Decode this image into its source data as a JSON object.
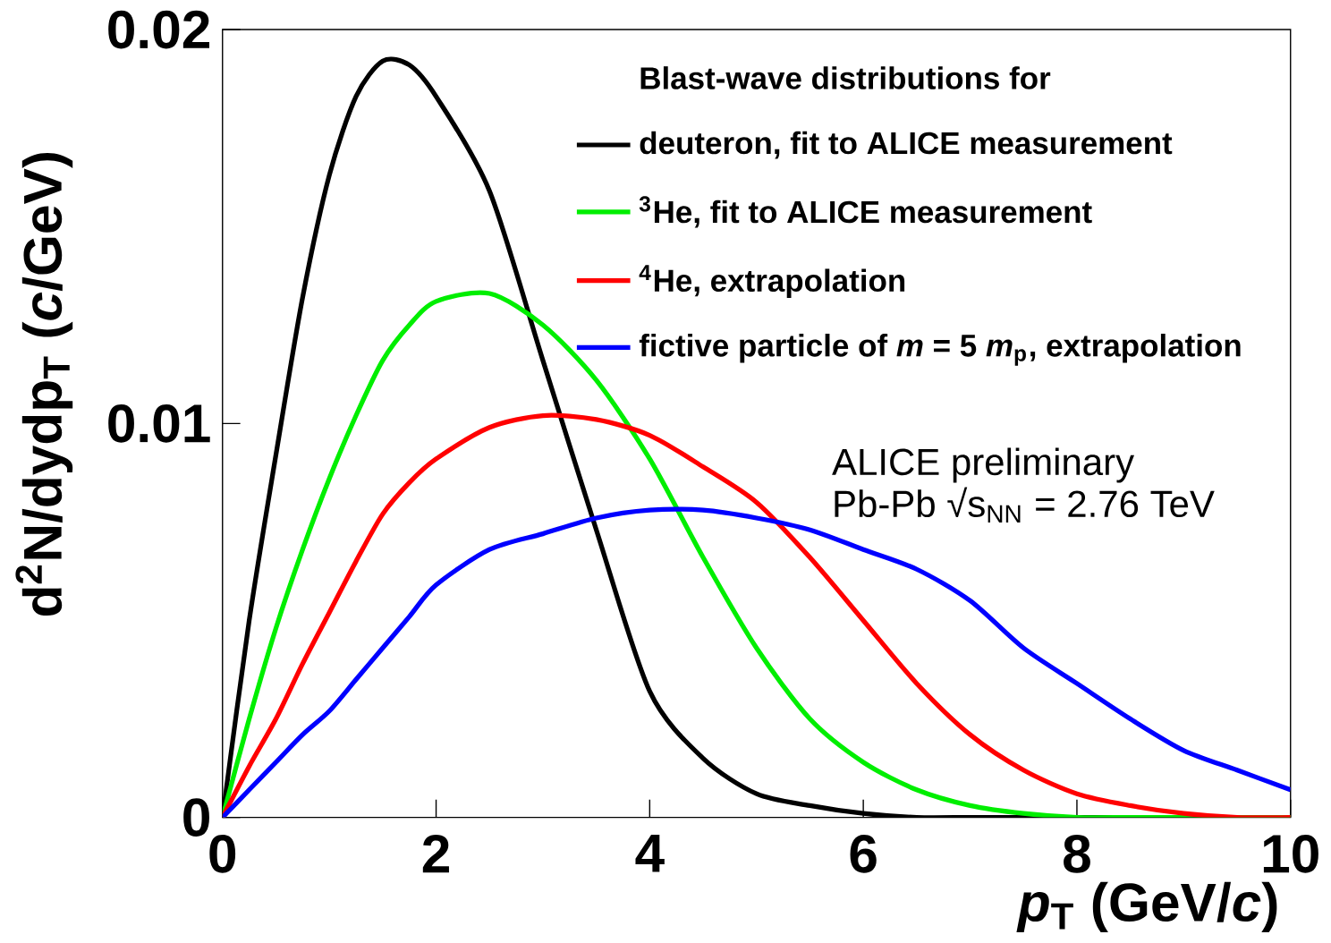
{
  "chart_data": {
    "type": "line",
    "xlabel": "*p*$_{T}$ (GeV/*c*)",
    "ylabel": "d$^{2}$N/dydp$_{T}$ (*c*/GeV)",
    "legend_title": "Blast-wave distributions for",
    "legend": "top right",
    "xlim": [
      0,
      10
    ],
    "ylim": [
      0,
      0.02
    ],
    "xticks": [
      0,
      2,
      4,
      6,
      8,
      10
    ],
    "yticks": [
      0,
      0.01,
      0.02
    ],
    "x": [
      0,
      0.25,
      0.5,
      0.75,
      1,
      1.25,
      1.5,
      1.75,
      2,
      2.5,
      3,
      3.5,
      4,
      4.5,
      5,
      5.5,
      6,
      6.5,
      7,
      7.5,
      8,
      8.5,
      9,
      9.5,
      10
    ],
    "series": [
      {
        "name": "deuteron, fit to ALICE measurement",
        "color": "#000000",
        "values": [
          0,
          0.005,
          0.0092,
          0.0132,
          0.0163,
          0.0183,
          0.0192,
          0.0191,
          0.0183,
          0.0159,
          0.0116,
          0.0073,
          0.0032,
          0.0015,
          0.0006,
          0.0003,
          0.0001,
          0,
          0,
          0,
          0,
          0,
          0,
          0,
          0
        ]
      },
      {
        "name": "$^{3}$He, fit to ALICE measurement",
        "color": "#00ee00",
        "values": [
          0,
          0.0025,
          0.0048,
          0.0068,
          0.0086,
          0.0102,
          0.0116,
          0.0125,
          0.0131,
          0.0133,
          0.0125,
          0.0111,
          0.0091,
          0.0066,
          0.0043,
          0.0025,
          0.0014,
          0.0007,
          0.0003,
          0.0001,
          0,
          0,
          0,
          0,
          0
        ]
      },
      {
        "name": "$^{4}$He, extrapolation",
        "color": "#ff0000",
        "values": [
          0,
          0.0013,
          0.0025,
          0.0039,
          0.0052,
          0.0065,
          0.0077,
          0.0085,
          0.0091,
          0.0099,
          0.0102,
          0.0101,
          0.0097,
          0.0089,
          0.008,
          0.0066,
          0.005,
          0.0034,
          0.0021,
          0.0012,
          0.0006,
          0.0003,
          0.0001,
          0,
          0
        ]
      },
      {
        "name": "fictive particle of *m* = 5 *m*$_{p}$, extrapolation",
        "color": "#0000ff",
        "values": [
          0,
          0.0007,
          0.0014,
          0.0021,
          0.0027,
          0.0035,
          0.0043,
          0.0051,
          0.0059,
          0.0068,
          0.0072,
          0.0076,
          0.0078,
          0.0078,
          0.0076,
          0.0073,
          0.0068,
          0.0063,
          0.0055,
          0.0043,
          0.0034,
          0.0025,
          0.0017,
          0.0012,
          0.0007
        ]
      }
    ],
    "annotations": [
      "ALICE preliminary",
      "Pb-Pb √s$_{NN}$ = 2.76 TeV"
    ]
  }
}
